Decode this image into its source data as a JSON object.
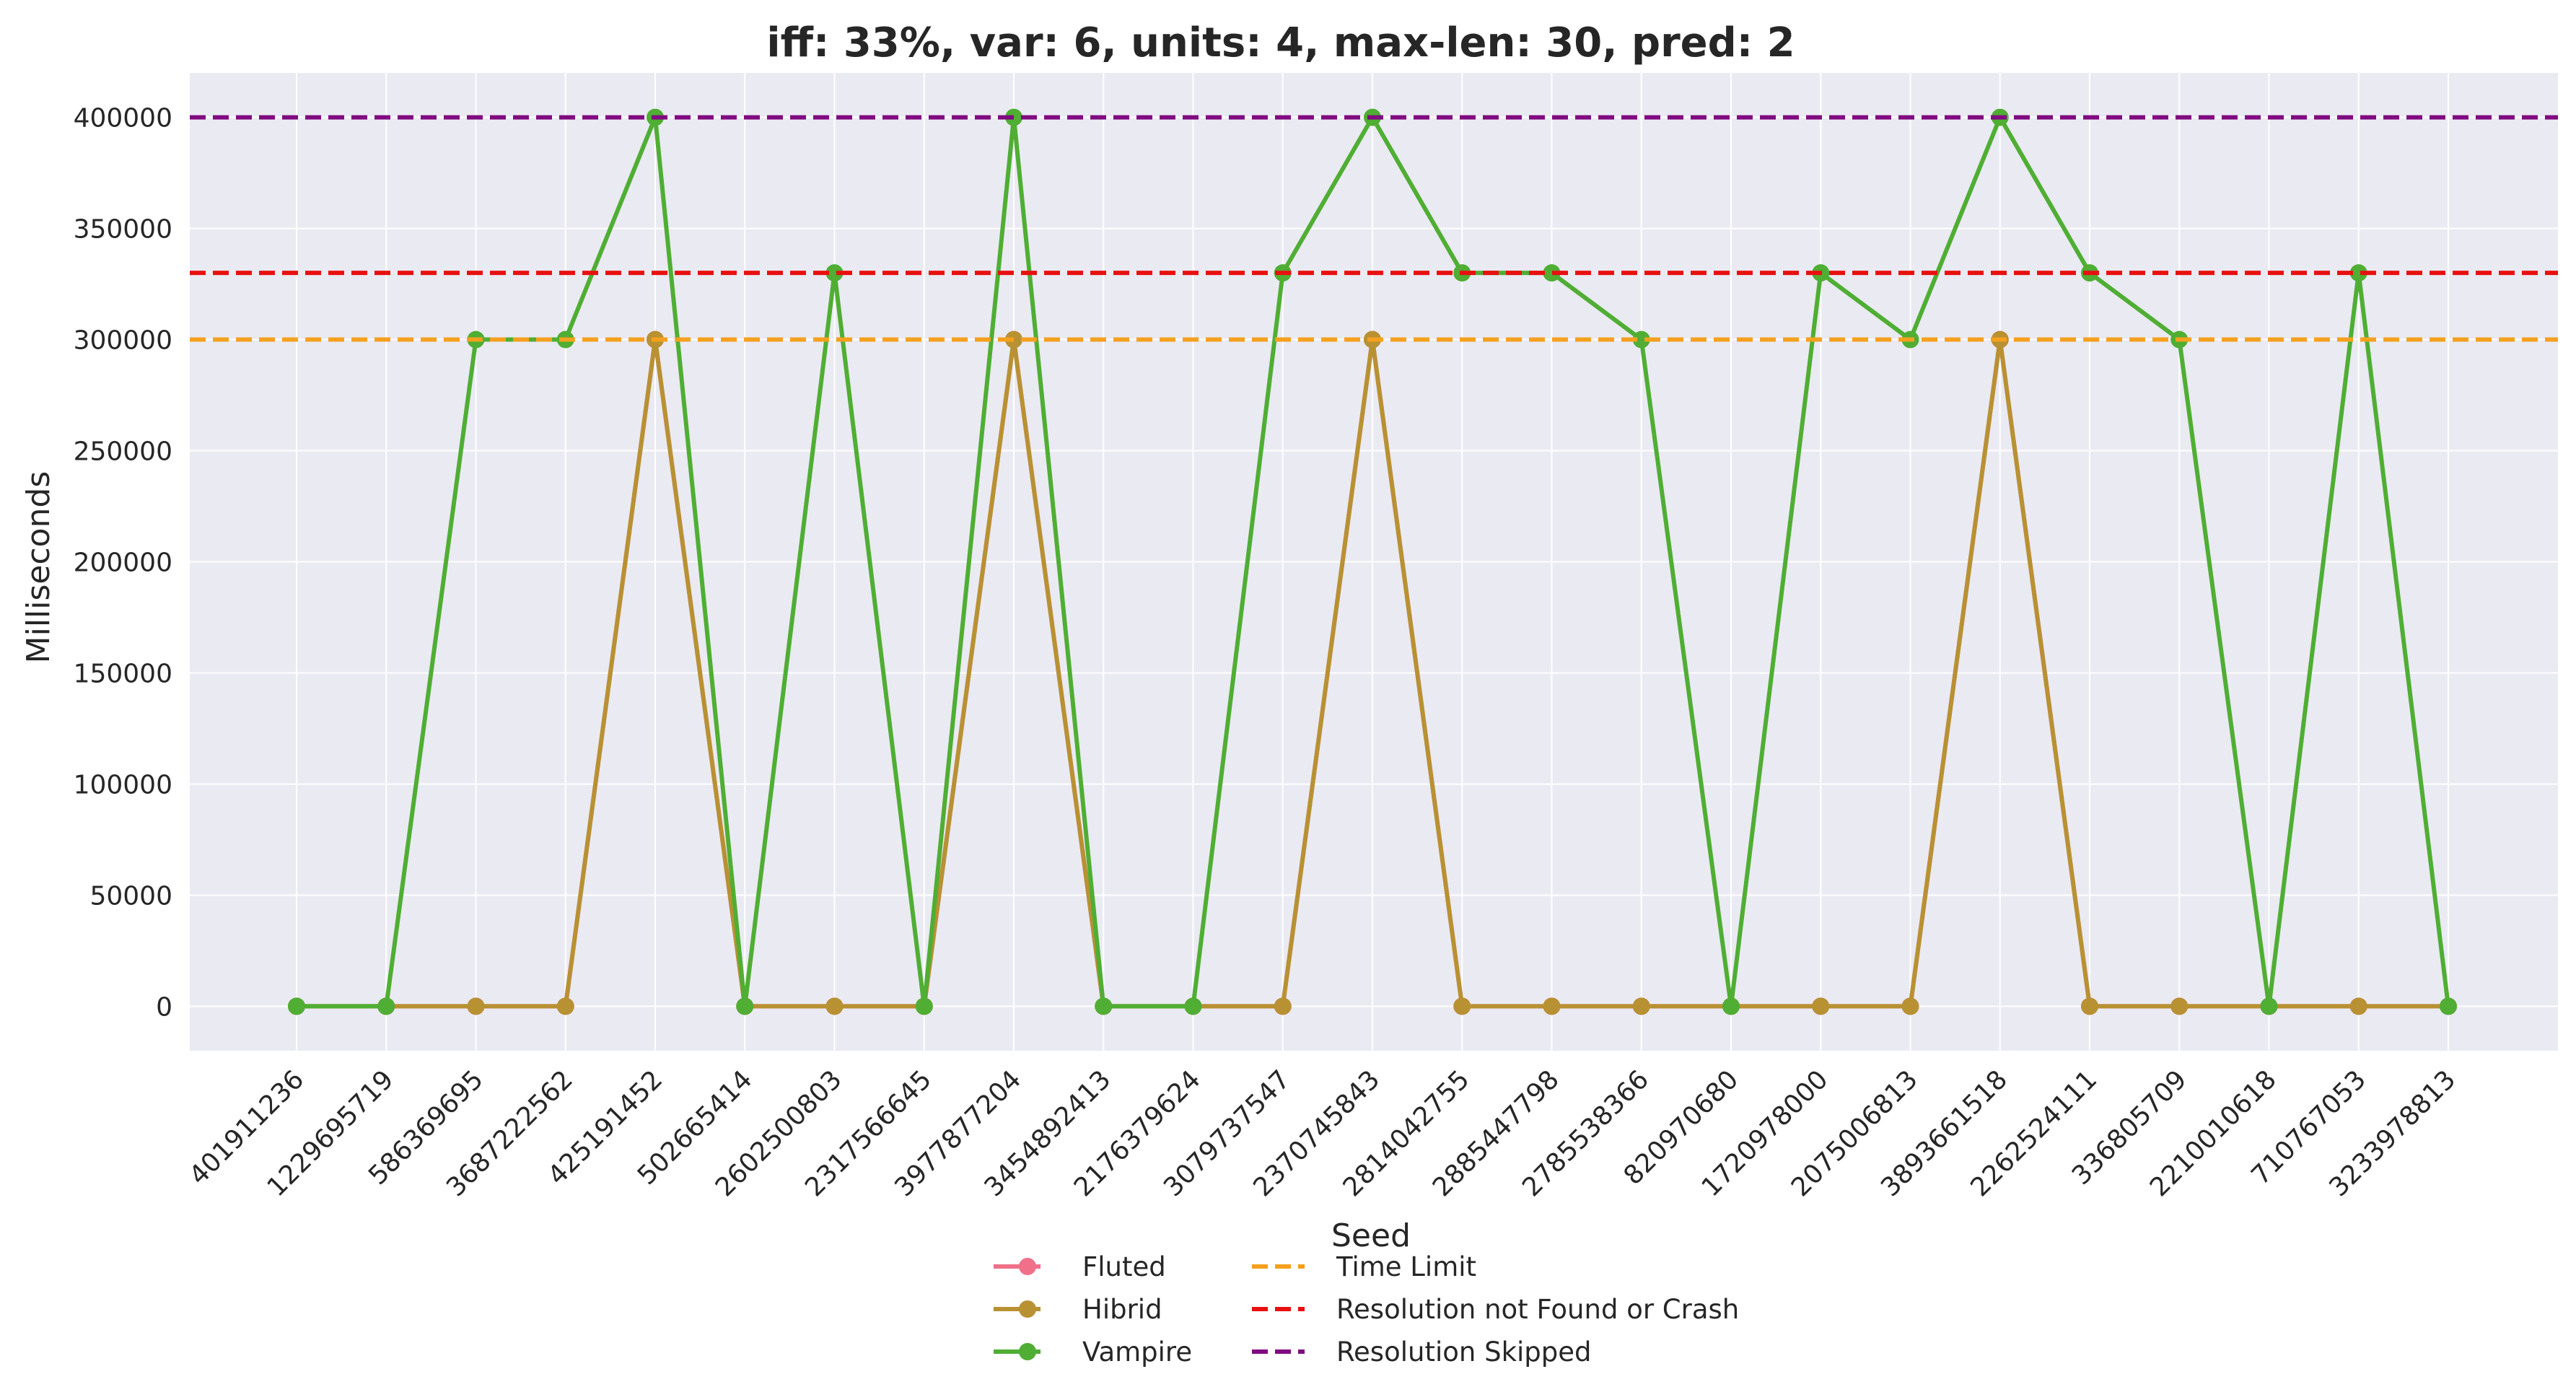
{
  "chart_data": {
    "type": "line",
    "title": "iff: 33%, var: 6, units: 4, max-len: 30, pred: 2",
    "xlabel": "Seed",
    "ylabel": "Milliseconds",
    "ylim": [
      -20000,
      420000
    ],
    "yticks": [
      0,
      50000,
      100000,
      150000,
      200000,
      250000,
      300000,
      350000,
      400000
    ],
    "grid": true,
    "legend_position": "below",
    "categories": [
      "401911236",
      "1229695719",
      "586369695",
      "3687222562",
      "425191452",
      "502665414",
      "2602500803",
      "2317566645",
      "3977877204",
      "3454892413",
      "2176379624",
      "3079737547",
      "2370745843",
      "2814042755",
      "2885447798",
      "2785538366",
      "820970680",
      "1720978000",
      "2075006813",
      "3893661518",
      "2262524111",
      "336805709",
      "2210010618",
      "710767053",
      "3233978813"
    ],
    "series": [
      {
        "name": "Fluted",
        "color": "#f0708a",
        "values": [
          0,
          0,
          0,
          0,
          300000,
          0,
          0,
          0,
          300000,
          0,
          0,
          0,
          300000,
          0,
          0,
          0,
          0,
          0,
          0,
          300000,
          0,
          0,
          0,
          0,
          0
        ]
      },
      {
        "name": "Hibrid",
        "color": "#b89133",
        "values": [
          0,
          0,
          0,
          0,
          300000,
          0,
          0,
          0,
          300000,
          0,
          0,
          0,
          300000,
          0,
          0,
          0,
          0,
          0,
          0,
          300000,
          0,
          0,
          0,
          0,
          0
        ]
      },
      {
        "name": "Vampire",
        "color": "#4fae33",
        "values": [
          0,
          0,
          300000,
          300000,
          400000,
          0,
          330000,
          0,
          400000,
          0,
          0,
          330000,
          400000,
          330000,
          330000,
          300000,
          0,
          330000,
          300000,
          400000,
          330000,
          300000,
          0,
          330000,
          0
        ]
      }
    ],
    "reference_lines": [
      {
        "name": "Time Limit",
        "value": 300000,
        "color": "#f5a01e"
      },
      {
        "name": "Resolution not Found or Crash",
        "value": 330000,
        "color": "#e81010"
      },
      {
        "name": "Resolution Skipped",
        "value": 400000,
        "color": "#800a80"
      }
    ]
  }
}
